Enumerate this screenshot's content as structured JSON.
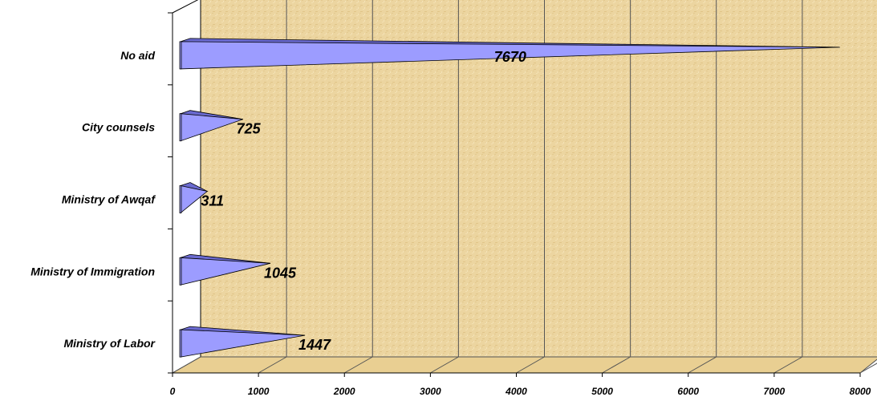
{
  "chart_data": {
    "type": "bar",
    "orientation": "horizontal",
    "bar_shape": "3d-cone",
    "categories": [
      "Ministry of Labor",
      "Ministry of Immigration",
      "Ministry of Awqaf",
      "City counsels",
      "No aid"
    ],
    "values": [
      1447,
      1045,
      311,
      725,
      7670
    ],
    "data_labels": [
      "1447",
      "1045",
      "311",
      "725",
      "7670"
    ],
    "x_ticks": [
      "0",
      "1000",
      "2000",
      "3000",
      "4000",
      "5000",
      "6000",
      "7000",
      "8000"
    ],
    "xlim": [
      0,
      8000
    ],
    "title": "",
    "xlabel": "",
    "ylabel": "",
    "grid": true,
    "legend": "none",
    "colors": {
      "bar_face": "#9c9cff",
      "bar_top": "#6a6ad0",
      "bar_stroke": "#000000",
      "wall_light": "#efd9a6",
      "wall_dark": "#d9be86",
      "floor": "#e9cf92",
      "grid_line": "#555555"
    }
  }
}
